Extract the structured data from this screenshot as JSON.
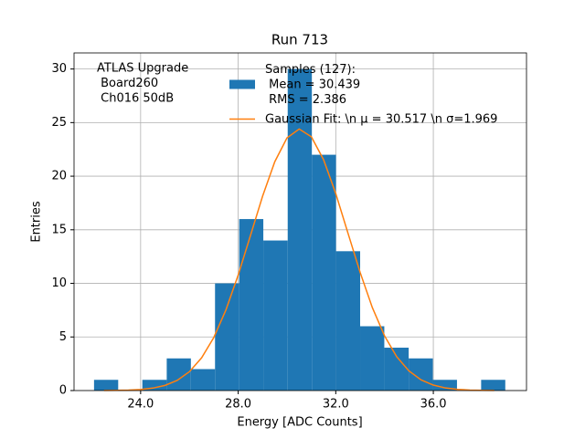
{
  "chart_data": {
    "type": "histogram",
    "title": "Run 713",
    "xlabel": "Energy [ADC Counts]",
    "ylabel": "Entries",
    "annotation": [
      "ATLAS Upgrade",
      " Board260",
      " Ch016 50dB"
    ],
    "bins": [
      22.09,
      23.08,
      24.07,
      25.07,
      26.06,
      27.05,
      28.04,
      29.03,
      30.03,
      31.02,
      32.01,
      33.0,
      33.99,
      34.99,
      35.98,
      36.97,
      37.96,
      38.95
    ],
    "series": [
      {
        "name": "Samples (127):\n Mean = 30.439\n RMS = 2.386",
        "color": "#1f77b4",
        "values": [
          1,
          0,
          1,
          3,
          2,
          10,
          16,
          14,
          30,
          22,
          13,
          6,
          4,
          3,
          1,
          0,
          1
        ]
      },
      {
        "name": "Gaussian Fit: \\n μ = 30.517 \\n σ=1.969",
        "type": "line",
        "color": "#ff7f0e",
        "x": [
          22.5,
          23.0,
          23.5,
          24.0,
          24.5,
          25.0,
          25.5,
          26.0,
          26.5,
          27.0,
          27.5,
          28.0,
          28.5,
          29.0,
          29.5,
          30.0,
          30.5,
          31.0,
          31.5,
          32.0,
          32.5,
          33.0,
          33.5,
          34.0,
          34.5,
          35.0,
          35.5,
          36.0,
          36.5,
          37.0,
          37.5,
          38.0,
          38.5
        ],
        "values": [
          0.006,
          0.017,
          0.043,
          0.1,
          0.23,
          0.48,
          0.95,
          1.76,
          3.05,
          4.95,
          7.54,
          10.78,
          14.44,
          18.13,
          21.35,
          23.57,
          24.4,
          23.68,
          21.54,
          18.38,
          14.69,
          11.02,
          7.74,
          5.1,
          3.15,
          1.83,
          0.99,
          0.51,
          0.24,
          0.11,
          0.045,
          0.018,
          0.007
        ]
      }
    ],
    "xlim": [
      21.27,
      39.82
    ],
    "ylim": [
      0,
      31.5
    ],
    "xticks": [
      {
        "value": 24,
        "label": "24.0"
      },
      {
        "value": 28,
        "label": "28.0"
      },
      {
        "value": 32,
        "label": "32.0"
      },
      {
        "value": 36,
        "label": "36.0"
      }
    ],
    "yticks": [
      0,
      5,
      10,
      15,
      20,
      25,
      30
    ],
    "grid": true
  }
}
